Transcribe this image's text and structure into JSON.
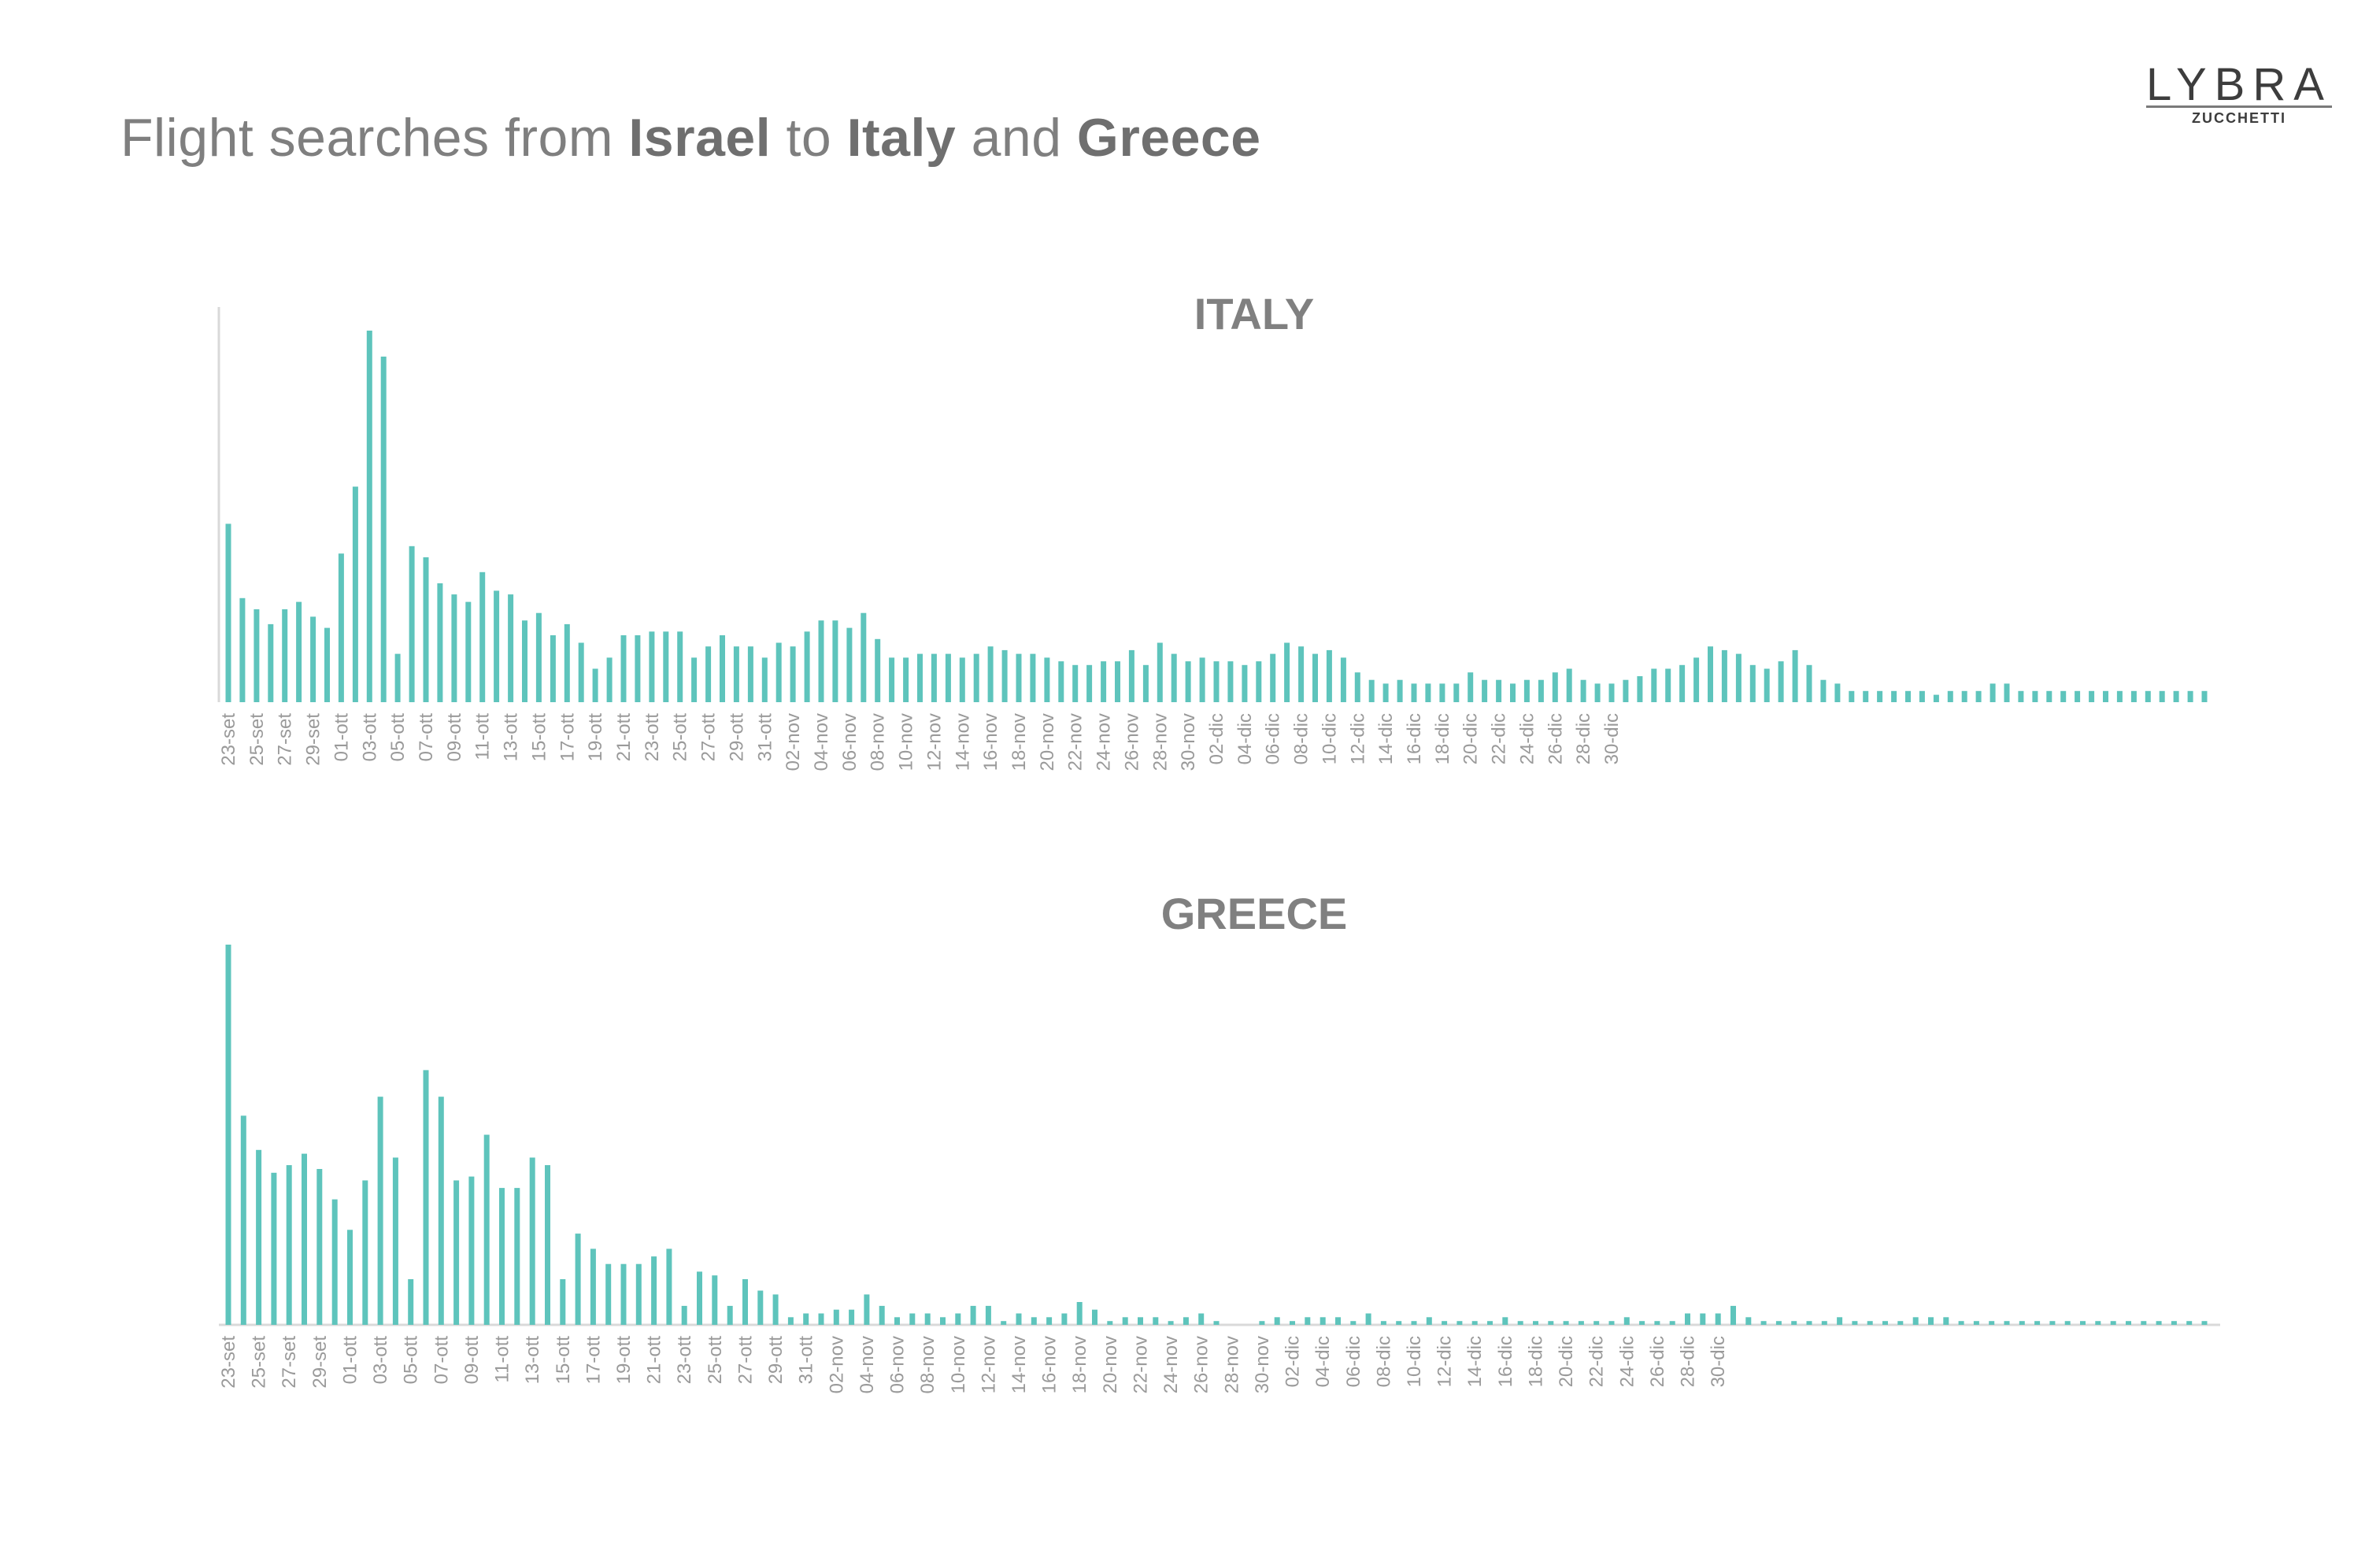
{
  "title": {
    "prefix": "Flight searches from ",
    "origin": "Israel",
    "mid1": " to ",
    "dest1": "Italy",
    "mid2": " and ",
    "dest2": "Greece"
  },
  "logo": {
    "main": "LYBRA",
    "sub": "ZUCCHETTI"
  },
  "colors": {
    "bar": "#5ec4bc",
    "title": "#7f7f7f",
    "tick": "#9a9a9a"
  },
  "chart_data": [
    {
      "type": "bar",
      "title": "ITALY",
      "x_tick_labels": [
        "23-set",
        "25-set",
        "27-set",
        "29-set",
        "01-ott",
        "03-ott",
        "05-ott",
        "07-ott",
        "09-ott",
        "11-ott",
        "13-ott",
        "15-ott",
        "17-ott",
        "19-ott",
        "21-ott",
        "23-ott",
        "25-ott",
        "27-ott",
        "29-ott",
        "31-ott",
        "02-nov",
        "04-nov",
        "06-nov",
        "08-nov",
        "10-nov",
        "12-nov",
        "14-nov",
        "16-nov",
        "18-nov",
        "20-nov",
        "22-nov",
        "24-nov",
        "26-nov",
        "28-nov",
        "30-nov",
        "02-dic",
        "04-dic",
        "06-dic",
        "08-dic",
        "10-dic",
        "12-dic",
        "14-dic",
        "16-dic",
        "18-dic",
        "20-dic",
        "22-dic",
        "24-dic",
        "26-dic",
        "28-dic",
        "30-dic"
      ],
      "values": [
        48,
        28,
        25,
        21,
        25,
        27,
        23,
        20,
        40,
        58,
        100,
        93,
        13,
        42,
        39,
        32,
        29,
        27,
        35,
        30,
        29,
        22,
        24,
        18,
        21,
        16,
        9,
        12,
        18,
        18,
        19,
        19,
        19,
        12,
        15,
        18,
        15,
        15,
        12,
        16,
        15,
        19,
        22,
        22,
        20,
        24,
        17,
        12,
        12,
        13,
        13,
        13,
        12,
        13,
        15,
        14,
        13,
        13,
        12,
        11,
        10,
        10,
        11,
        11,
        14,
        10,
        16,
        13,
        11,
        12,
        11,
        11,
        10,
        11,
        13,
        16,
        15,
        13,
        14,
        12,
        8,
        6,
        5,
        6,
        5,
        5,
        5,
        5,
        8,
        6,
        6,
        5,
        6,
        6,
        8,
        9,
        6,
        5,
        5,
        6,
        7,
        9,
        9,
        10,
        12,
        15,
        14,
        13,
        10,
        9,
        11,
        14,
        10,
        6,
        5,
        3,
        3,
        3,
        3,
        3,
        3,
        2,
        3,
        3,
        3,
        5,
        5,
        3,
        3,
        3,
        3,
        3,
        3,
        3,
        3,
        3,
        3,
        3,
        3,
        3,
        3
      ],
      "ylim": [
        0,
        100
      ],
      "grid": false,
      "legend": "none"
    },
    {
      "type": "bar",
      "title": "GREECE",
      "x_tick_labels": [
        "23-set",
        "25-set",
        "27-set",
        "29-set",
        "01-ott",
        "03-ott",
        "05-ott",
        "07-ott",
        "09-ott",
        "11-ott",
        "13-ott",
        "15-ott",
        "17-ott",
        "19-ott",
        "21-ott",
        "23-ott",
        "25-ott",
        "27-ott",
        "29-ott",
        "31-ott",
        "02-nov",
        "04-nov",
        "06-nov",
        "08-nov",
        "10-nov",
        "12-nov",
        "14-nov",
        "16-nov",
        "18-nov",
        "20-nov",
        "22-nov",
        "24-nov",
        "26-nov",
        "28-nov",
        "30-nov",
        "02-dic",
        "04-dic",
        "06-dic",
        "08-dic",
        "10-dic",
        "12-dic",
        "14-dic",
        "16-dic",
        "18-dic",
        "20-dic",
        "22-dic",
        "24-dic",
        "26-dic",
        "28-dic",
        "30-dic"
      ],
      "values": [
        100,
        55,
        46,
        40,
        42,
        45,
        41,
        33,
        25,
        38,
        60,
        44,
        12,
        67,
        60,
        38,
        39,
        50,
        36,
        36,
        44,
        42,
        12,
        24,
        20,
        16,
        16,
        16,
        18,
        20,
        5,
        14,
        13,
        5,
        12,
        9,
        8,
        2,
        3,
        3,
        4,
        4,
        8,
        5,
        2,
        3,
        3,
        2,
        3,
        5,
        5,
        1,
        3,
        2,
        2,
        3,
        6,
        4,
        1,
        2,
        2,
        2,
        1,
        2,
        3,
        1,
        0,
        0,
        1,
        2,
        1,
        2,
        2,
        2,
        1,
        3,
        1,
        1,
        1,
        2,
        1,
        1,
        1,
        1,
        2,
        1,
        1,
        1,
        1,
        1,
        1,
        1,
        2,
        1,
        1,
        1,
        3,
        3,
        3,
        5,
        2,
        1,
        1,
        1,
        1,
        1,
        2,
        1,
        1,
        1,
        1,
        2,
        2,
        2,
        1,
        1,
        1,
        1,
        1,
        1,
        1,
        1,
        1,
        1,
        1,
        1,
        1,
        1,
        1,
        1,
        1
      ],
      "ylim": [
        0,
        100
      ],
      "grid": false,
      "legend": "none"
    }
  ]
}
